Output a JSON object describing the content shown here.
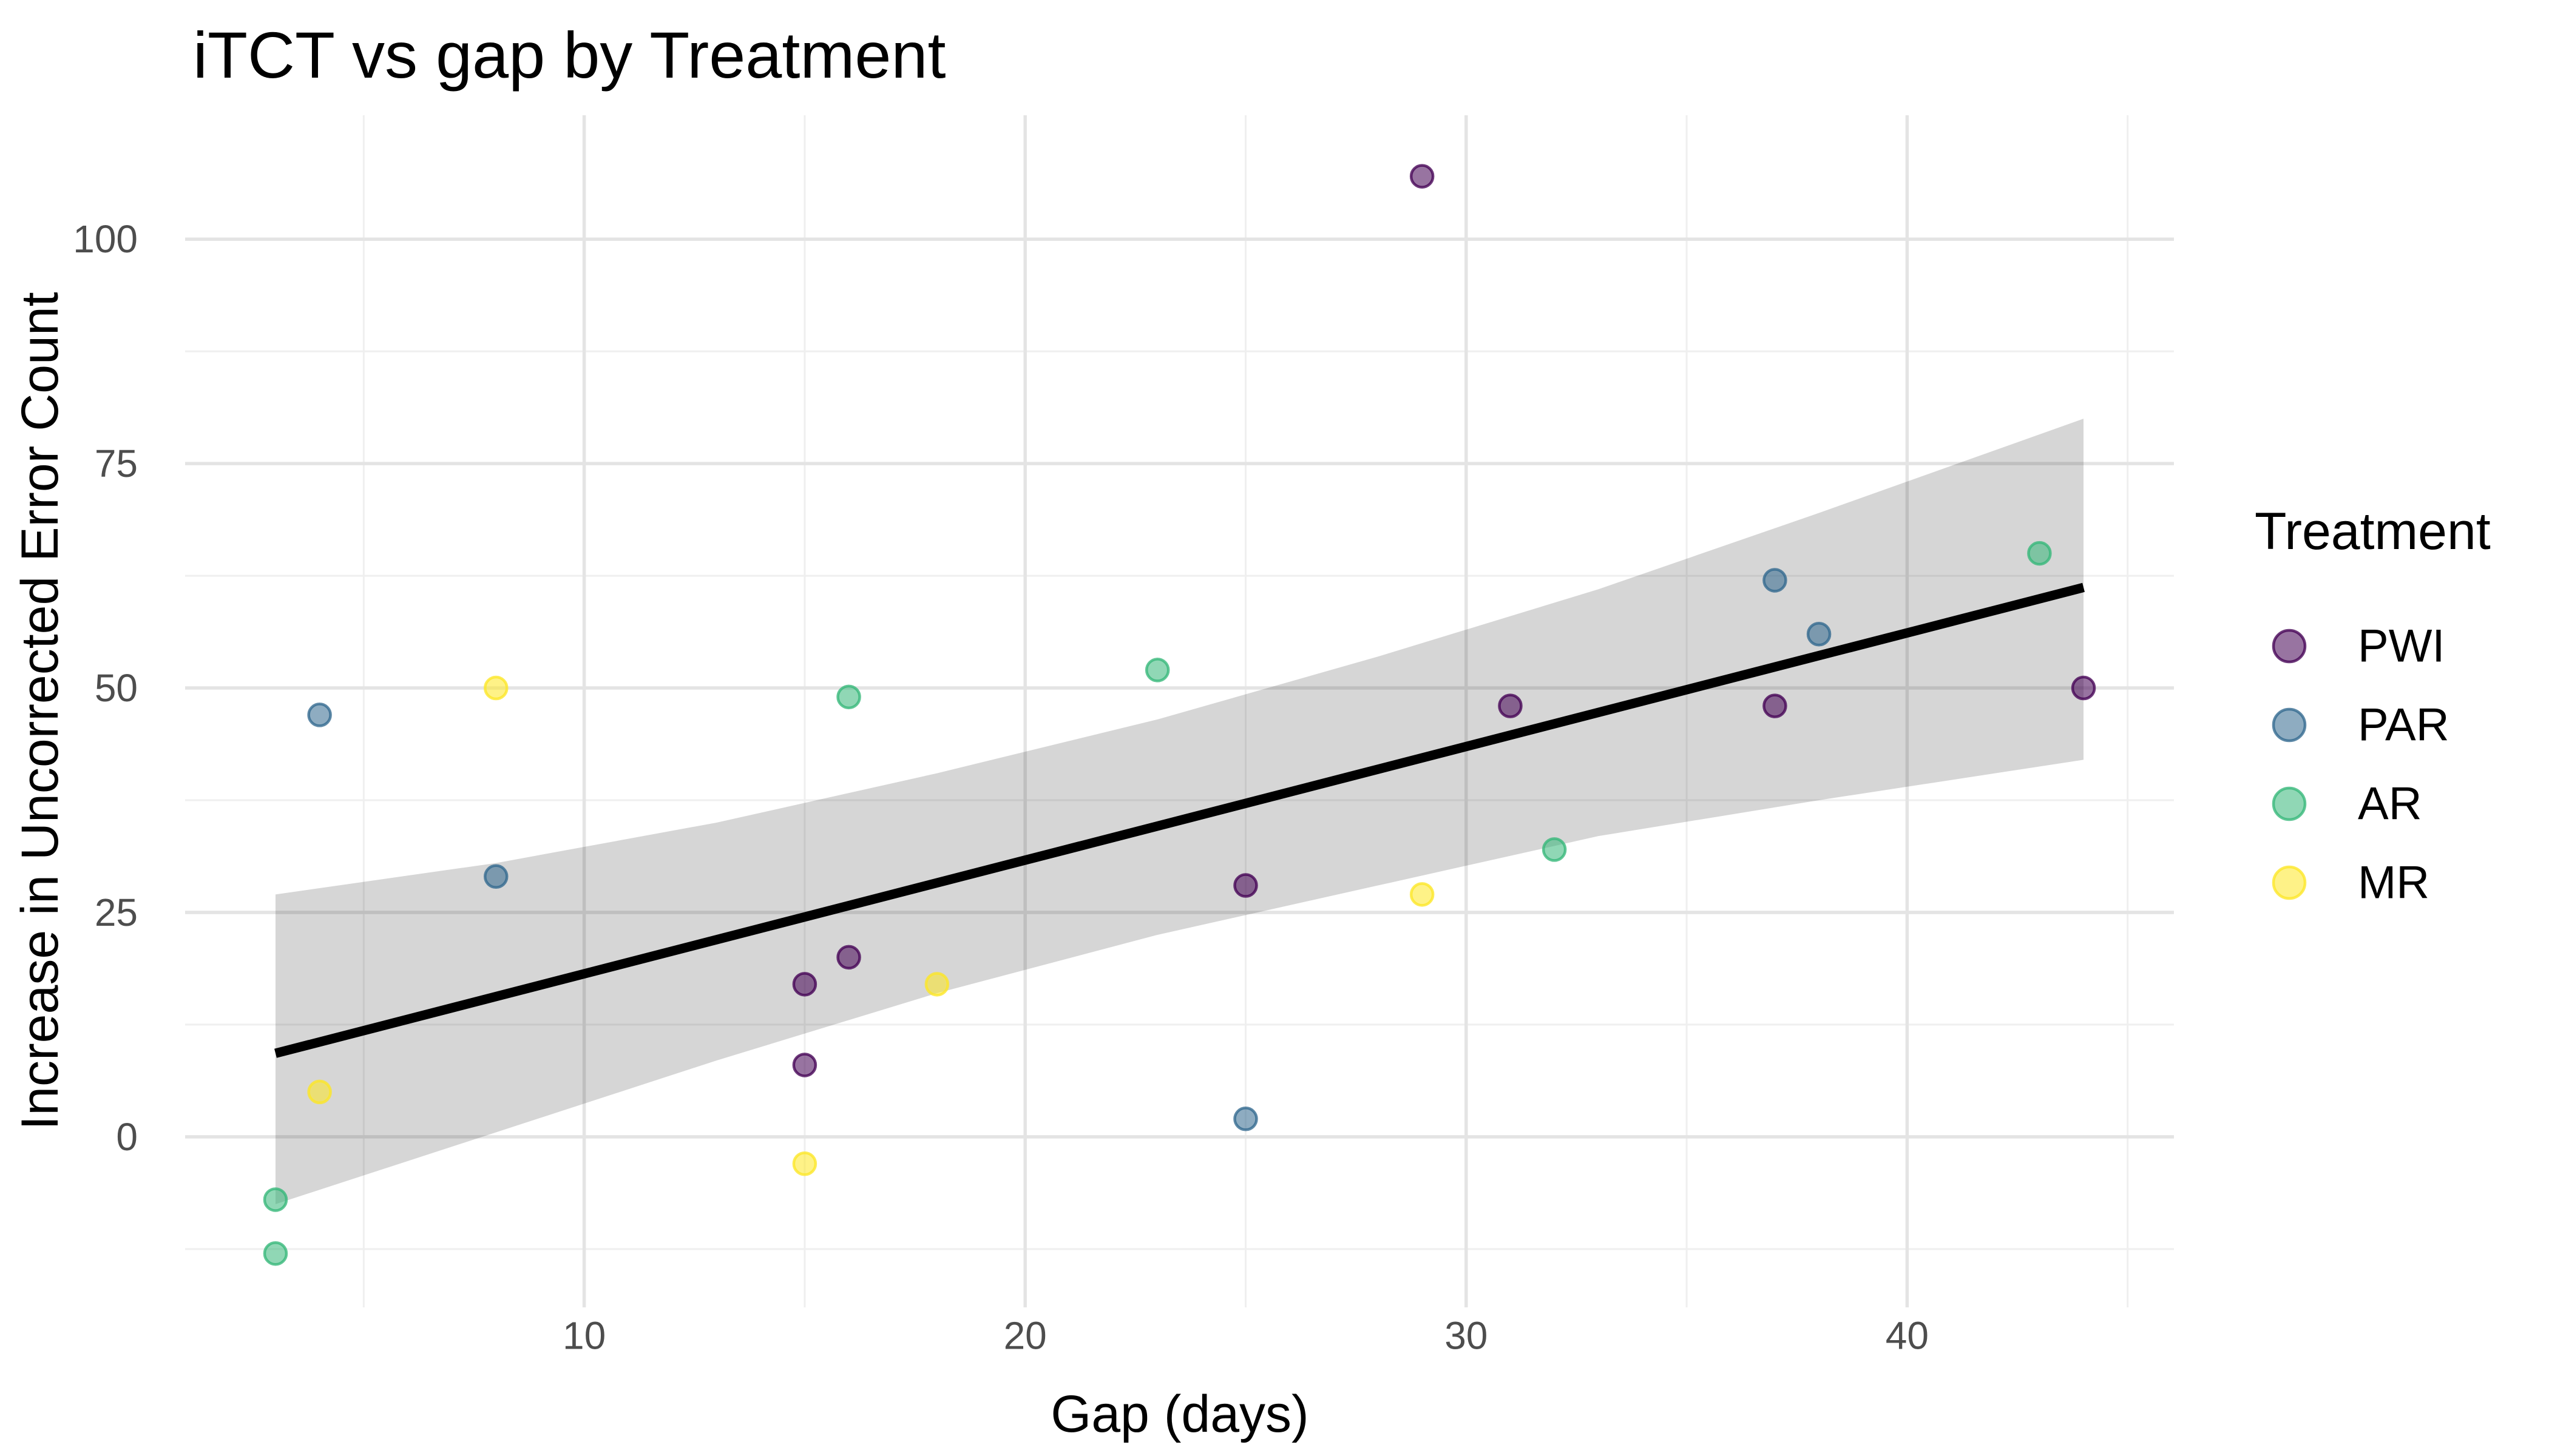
{
  "chart_data": {
    "type": "scatter",
    "title": "iTCT vs gap by Treatment",
    "xlabel": "Gap (days)",
    "ylabel": "Increase in Uncorrected Error Count",
    "xlim": [
      0.95,
      46.05
    ],
    "ylim": [
      -19,
      113.8
    ],
    "x_major_ticks": [
      10,
      20,
      30,
      40
    ],
    "x_minor_ticks": [
      5,
      15,
      25,
      35,
      45
    ],
    "y_major_ticks": [
      0,
      25,
      50,
      75,
      100
    ],
    "y_minor_ticks": [
      -12.5,
      12.5,
      37.5,
      62.5,
      87.5
    ],
    "grid": "on",
    "legend_position": "right",
    "legend_title": "Treatment",
    "series": [
      {
        "name": "PWI",
        "color": "#440154",
        "points": [
          [
            15,
            17
          ],
          [
            15,
            8
          ],
          [
            16,
            20
          ],
          [
            25,
            28
          ],
          [
            29,
            107
          ],
          [
            31,
            48
          ],
          [
            37,
            48
          ],
          [
            44,
            50
          ]
        ]
      },
      {
        "name": "PAR",
        "color": "#31688E",
        "points": [
          [
            4,
            47
          ],
          [
            8,
            29
          ],
          [
            25,
            2
          ],
          [
            37,
            62
          ],
          [
            38,
            56
          ]
        ]
      },
      {
        "name": "AR",
        "color": "#35B779",
        "points": [
          [
            3,
            -7
          ],
          [
            3,
            -13
          ],
          [
            16,
            49
          ],
          [
            23,
            52
          ],
          [
            32,
            32
          ],
          [
            43,
            65
          ]
        ]
      },
      {
        "name": "MR",
        "color": "#FDE725",
        "points": [
          [
            4,
            5
          ],
          [
            8,
            50
          ],
          [
            15,
            -3
          ],
          [
            18,
            17
          ],
          [
            29,
            27
          ]
        ]
      }
    ],
    "smooth": {
      "line_color": "#000000",
      "line": {
        "x1": 3,
        "y1": 9.3,
        "x2": 44,
        "y2": 61.2
      },
      "band_fill": "rgba(0,0,0,0.16)",
      "band": [
        {
          "x": 3,
          "lo": -7.5,
          "hi": 27.0
        },
        {
          "x": 8,
          "lo": 0.5,
          "hi": 30.5
        },
        {
          "x": 13,
          "lo": 8.5,
          "hi": 35.0
        },
        {
          "x": 18,
          "lo": 16.0,
          "hi": 40.5
        },
        {
          "x": 23,
          "lo": 22.5,
          "hi": 46.5
        },
        {
          "x": 28,
          "lo": 28.0,
          "hi": 53.5
        },
        {
          "x": 33,
          "lo": 33.5,
          "hi": 61.0
        },
        {
          "x": 38,
          "lo": 37.5,
          "hi": 69.5
        },
        {
          "x": 44,
          "lo": 42.0,
          "hi": 80.0
        }
      ]
    }
  },
  "legend": {
    "title": "Treatment",
    "items": [
      {
        "label": "PWI"
      },
      {
        "label": "PAR"
      },
      {
        "label": "AR"
      },
      {
        "label": "MR"
      }
    ]
  },
  "style": {
    "grid_major_color": "#e4e4e4",
    "grid_minor_color": "#efefef",
    "tick_text_color": "#4d4d4d"
  }
}
